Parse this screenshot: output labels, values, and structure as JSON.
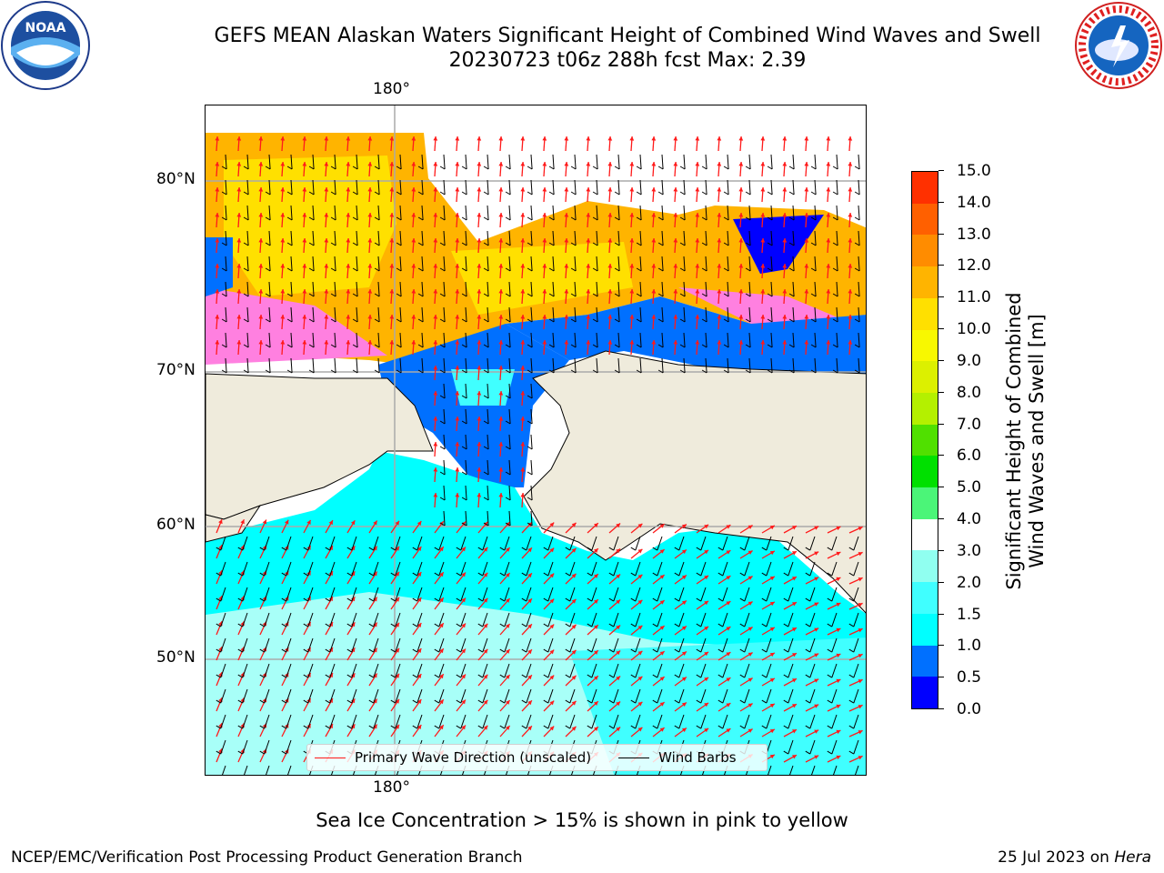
{
  "title": {
    "line1": "GEFS MEAN Alaskan Waters Significant Height of Combined Wind Waves and Swell",
    "line2": "20230723 t06z 288h fcst   Max: 2.39"
  },
  "map": {
    "lon_labels": {
      "top": "180°",
      "bottom": "180°"
    },
    "lat_labels": [
      "80°N",
      "70°N",
      "60°N",
      "50°N"
    ],
    "legend": {
      "wave_direction": "Primary Wave Direction (unscaled)",
      "wind_barbs": "Wind Barbs"
    },
    "colors": {
      "land": "#efebdc",
      "ocean_low": "#0070ff",
      "ocean_mid": "#00ffff",
      "ocean_high": "#a8fff8",
      "ice_pink": "#ff80e0",
      "ice_yellow": "#ffe000",
      "ice_orange": "#ffb400",
      "wave_arrow": "#ff1a1a"
    }
  },
  "colorbar": {
    "label_line1": "Significant Height of Combined",
    "label_line2": "Wind Waves and Swell [m]",
    "ticks": [
      "0.0",
      "0.5",
      "1.0",
      "1.5",
      "2.0",
      "3.0",
      "4.0",
      "5.0",
      "6.0",
      "7.0",
      "8.0",
      "9.0",
      "10.0",
      "11.0",
      "12.0",
      "13.0",
      "14.0",
      "15.0"
    ],
    "colors": [
      "#0000ff",
      "#0070ff",
      "#00ffff",
      "#40ffff",
      "#90fff0",
      "#ffffff",
      "#4bf578",
      "#00e000",
      "#50e000",
      "#b4f000",
      "#dcf000",
      "#f8f800",
      "#ffe000",
      "#ffb400",
      "#ff8c00",
      "#ff6000",
      "#ff3000",
      "#ff0000"
    ]
  },
  "caption": "Sea Ice Concentration > 15% is shown in pink to yellow",
  "footer": {
    "left": "NCEP/EMC/Verification Post Processing Product Generation Branch",
    "right_date": "25 Jul 2023 on",
    "right_host": "Hera"
  }
}
